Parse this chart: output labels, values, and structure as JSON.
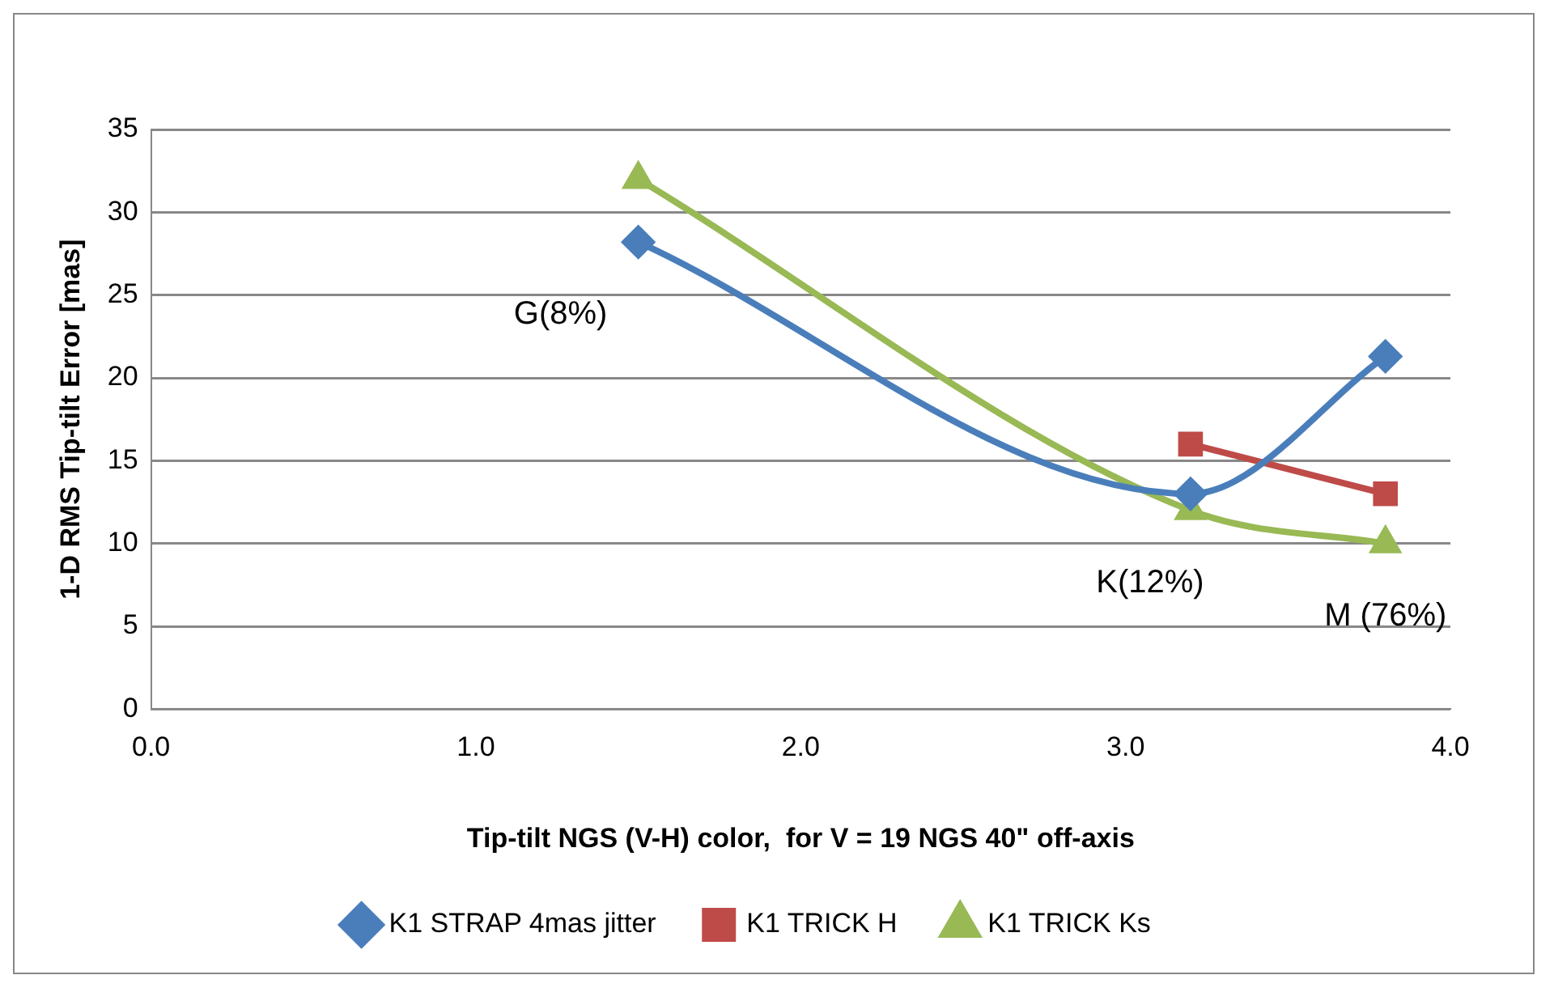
{
  "chart_data": {
    "type": "line",
    "xlabel": "Tip-tilt NGS (V-H) color,  for V = 19 NGS 40\" off-axis",
    "ylabel": "1-D RMS Tip-tilt Error [mas]",
    "x": [
      1.5,
      3.2,
      3.8
    ],
    "series": [
      {
        "name": "K1 STRAP 4mas jitter",
        "color": "#4a7ebb",
        "marker": "diamond",
        "values": [
          28.2,
          13,
          21.3
        ]
      },
      {
        "name": "K1 TRICK H",
        "color": "#be4b48",
        "marker": "square",
        "values": [
          null,
          16,
          13
        ]
      },
      {
        "name": "K1 TRICK Ks",
        "color": "#98b954",
        "marker": "triangle",
        "values": [
          32,
          12,
          10
        ]
      }
    ],
    "xlim": [
      0,
      4
    ],
    "xticks": [
      {
        "value": 0,
        "label": "0.0"
      },
      {
        "value": 1,
        "label": "1.0"
      },
      {
        "value": 2,
        "label": "2.0"
      },
      {
        "value": 3,
        "label": "3.0"
      },
      {
        "value": 4,
        "label": "4.0"
      }
    ],
    "ylim": [
      0,
      35
    ],
    "yticks": [
      0,
      5,
      10,
      15,
      20,
      25,
      30,
      35
    ],
    "grid": "y",
    "legend": "bottom",
    "annotations": [
      {
        "text": "G(8%)",
        "x": 1.5,
        "y": 28.2
      },
      {
        "text": "K(12%)",
        "x": 3.2,
        "y": 12
      },
      {
        "text": "M (76%)",
        "x": 3.8,
        "y": 10
      }
    ]
  }
}
